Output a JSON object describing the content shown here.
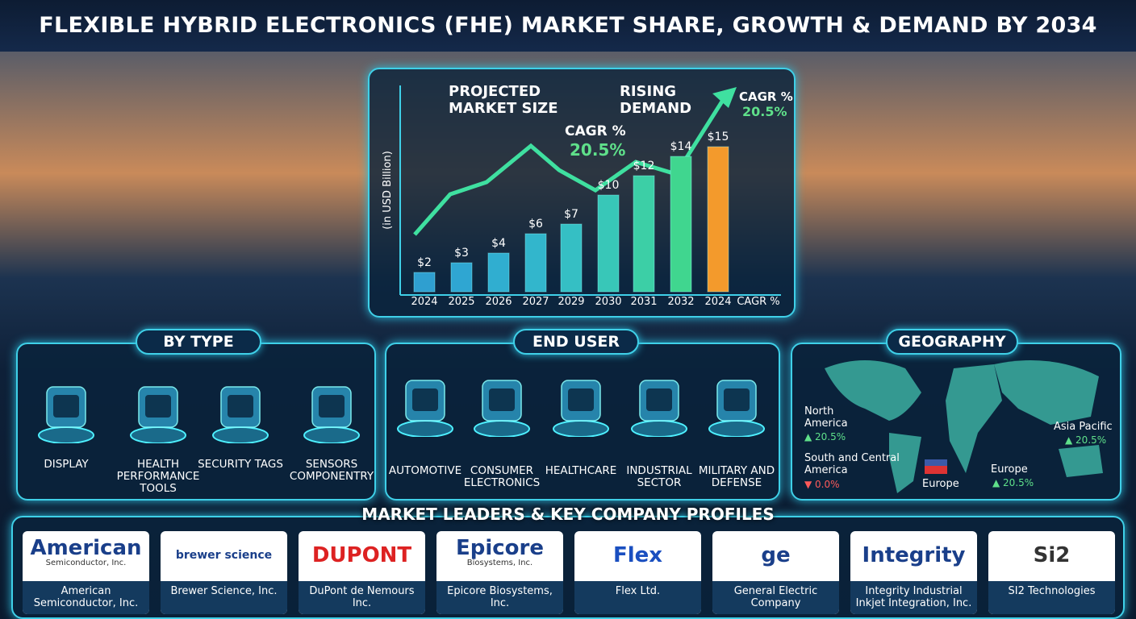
{
  "title": "FLEXIBLE HYBRID ELECTRONICS (FHE) MARKET SHARE, GROWTH & DEMAND BY 2034",
  "market_chart": {
    "type": "bar",
    "headings": [
      "PROJECTED MARKET SIZE",
      "RISING DEMAND"
    ],
    "y_label": "(in USD Billion)",
    "categories": [
      "2024",
      "2025",
      "2026",
      "2027",
      "2029",
      "2030",
      "2031",
      "2032",
      "2024",
      "CAGR %"
    ],
    "values": [
      2,
      3,
      4,
      6,
      7,
      10,
      12,
      14,
      15,
      null
    ],
    "value_labels": [
      "$2",
      "$3",
      "$4",
      "$6",
      "$7",
      "$10",
      "$12",
      "$14",
      "$15",
      null
    ],
    "colors": [
      "#2f9fd0",
      "#2fa6d2",
      "#30aed0",
      "#32b6cc",
      "#35bfc4",
      "#38c7b8",
      "#3ccfa6",
      "#40d68f",
      "#f39a2c",
      "#40d68f"
    ],
    "annotations": [
      {
        "label": "CAGR %",
        "value": "20.5%"
      },
      {
        "label": "CAGR %",
        "value": "20.5%"
      }
    ]
  },
  "by_type": {
    "title": "BY TYPE",
    "items": [
      "DISPLAY",
      "HEALTH PERFORMANCE TOOLS",
      "SECURITY TAGS",
      "SENSORS COMPONENTRY"
    ]
  },
  "end_user": {
    "title": "END USER",
    "items": [
      "AUTOMOTIVE",
      "CONSUMER ELECTRONICS",
      "HEALTHCARE",
      "INDUSTRIAL SECTOR",
      "MILITARY AND DEFENSE"
    ]
  },
  "geography": {
    "title": "GEOGRAPHY",
    "regions": [
      {
        "name": "North America",
        "change": "▲ 20.5%"
      },
      {
        "name": "South and Central America",
        "change": "▼ 0.0%"
      },
      {
        "name": "Europe",
        "change": "▲ 20.5%"
      },
      {
        "name": "Asia Pacific",
        "change": "▲ 20.5%"
      }
    ],
    "flag_labels": [
      "Europe"
    ]
  },
  "companies": {
    "title": "MARKET LEADERS & KEY COMPANY PROFILES",
    "items": [
      {
        "logo": "American",
        "logo_sub": "Semiconductor, Inc.",
        "name": "American Semiconductor, Inc."
      },
      {
        "logo": "brewer science",
        "name": "Brewer Science, Inc."
      },
      {
        "logo": "DUPONT",
        "name": "DuPont de Nemours Inc."
      },
      {
        "logo": "Epicore",
        "logo_sub": "Biosystems, Inc.",
        "name": "Epicore Biosystems, Inc."
      },
      {
        "logo": "Flex",
        "name": "Flex Ltd."
      },
      {
        "logo": "ge",
        "name": "General Electric Company"
      },
      {
        "logo": "Integrity",
        "name": "Integrity Industrial Inkjet Integration, Inc."
      },
      {
        "logo": "Si2",
        "name": "SI2 Technologies"
      }
    ]
  }
}
